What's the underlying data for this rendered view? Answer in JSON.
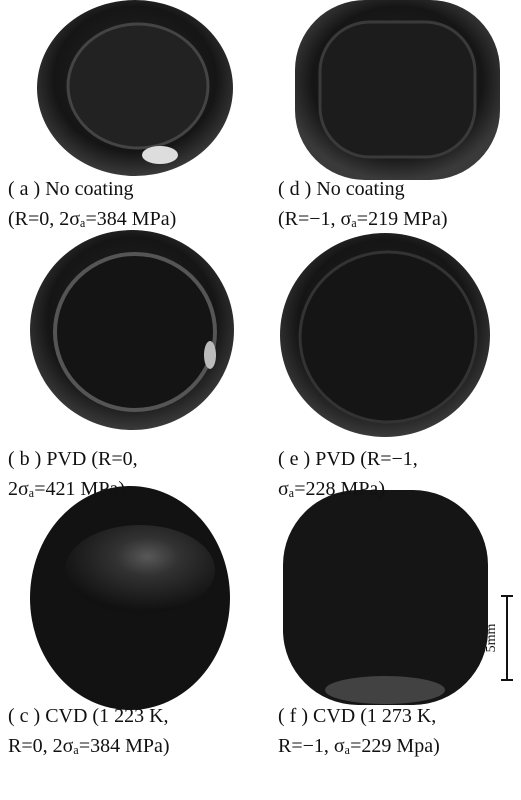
{
  "panels": [
    {
      "lines": [
        "( a )  No coating",
        "(R=0, 2σₐ=384 MPa)"
      ]
    },
    {
      "lines": [
        "( d )  No coating",
        "(R=−1, σₐ=219 MPa)"
      ]
    },
    {
      "lines": [
        "( b )  PVD (R=0,",
        "2σₐ=421 MPa)"
      ]
    },
    {
      "lines": [
        "( e )  PVD (R=−1,",
        "σₐ=228 MPa)"
      ]
    },
    {
      "lines": [
        "( c )  CVD (1 223 K,",
        "R=0, 2σₐ=384 MPa)"
      ]
    },
    {
      "lines": [
        "( f ) CVD (1 273 K,",
        "R=−1, σₐ=229 Mpa)"
      ]
    }
  ],
  "scale_bar": "5mm"
}
